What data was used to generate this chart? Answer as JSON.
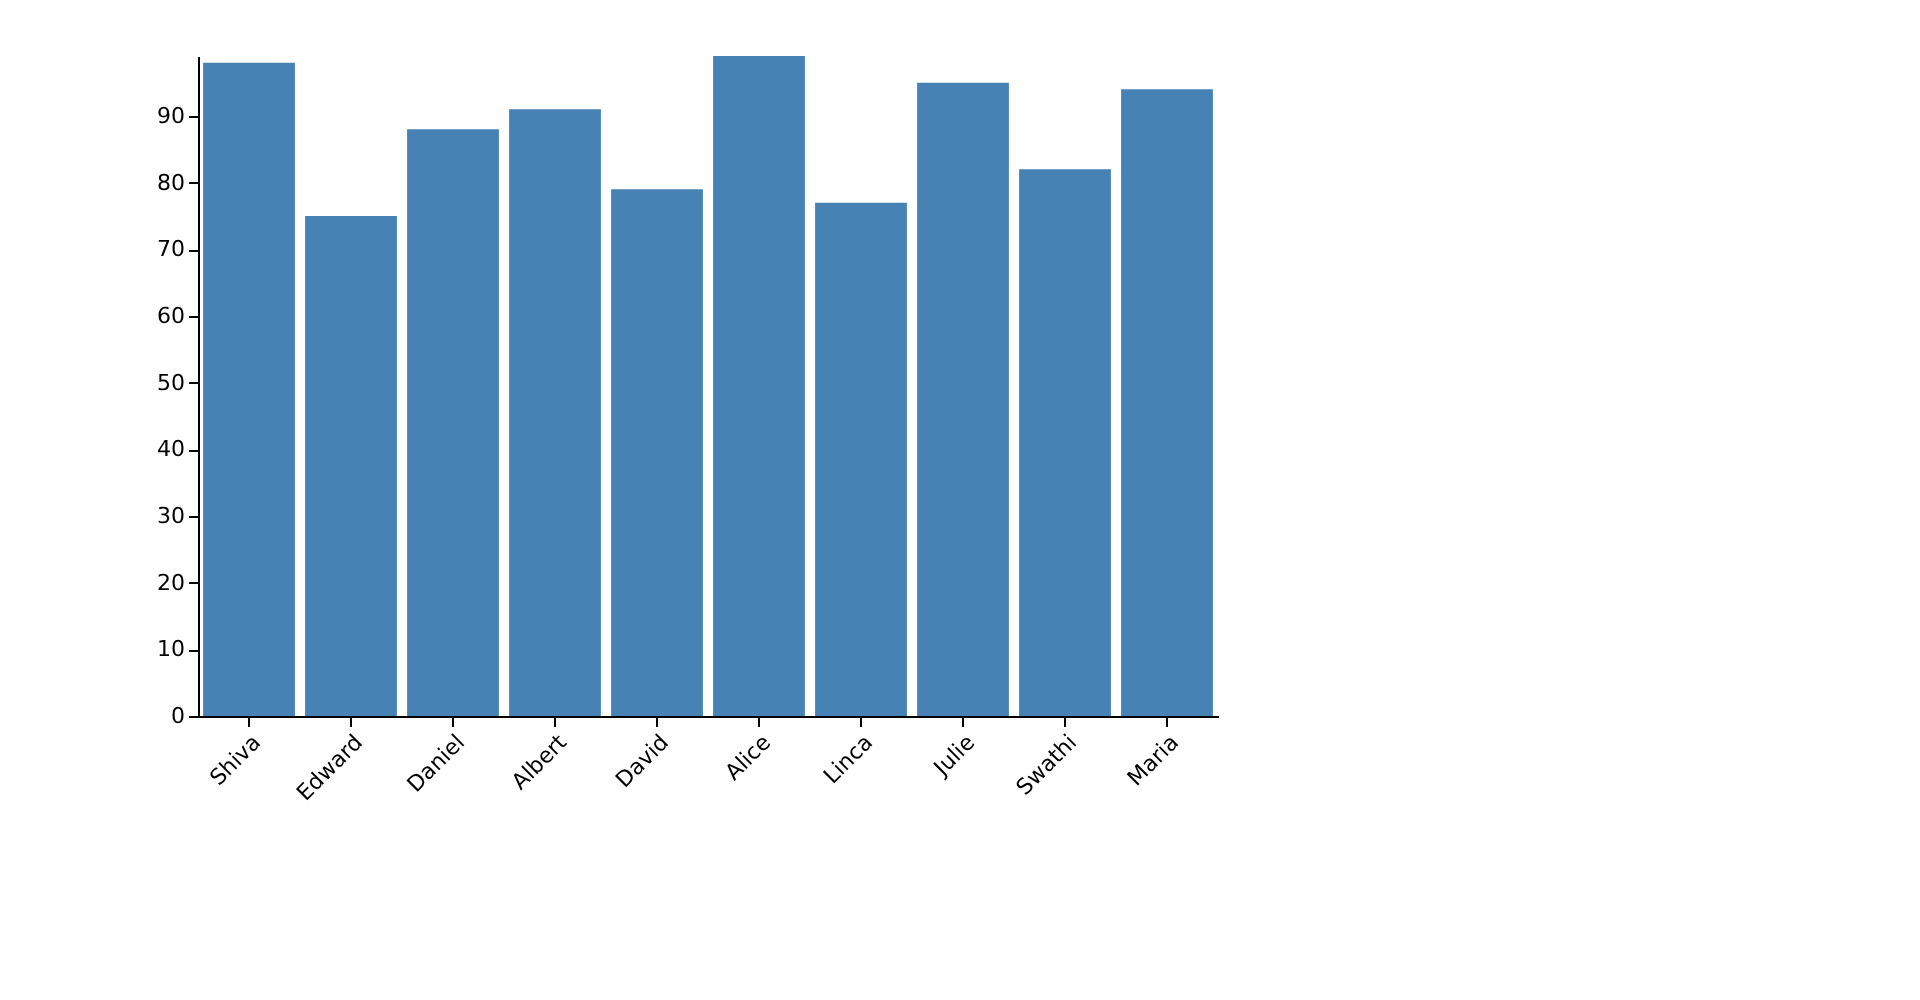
{
  "chart_data": {
    "type": "bar",
    "categories": [
      "Shiva",
      "Edward",
      "Daniel",
      "Albert",
      "David",
      "Alice",
      "Linca",
      "Julie",
      "Swathi",
      "Maria"
    ],
    "values": [
      98,
      75,
      88,
      91,
      79,
      99,
      77,
      95,
      82,
      94
    ],
    "color": "#4682b4",
    "ylim": [
      0,
      99
    ],
    "yticks": [
      0,
      10,
      20,
      30,
      40,
      50,
      60,
      70,
      80,
      90
    ],
    "grid": false
  }
}
